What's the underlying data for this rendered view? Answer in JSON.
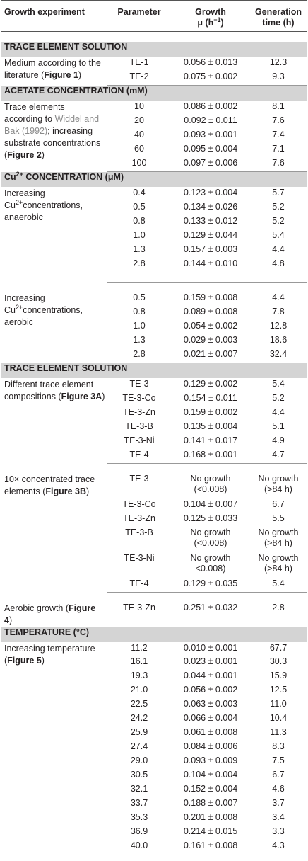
{
  "header": {
    "col1": "Growth experiment",
    "col2": "Parameter",
    "col3_line1": "Growth",
    "col3_line2": "μ (h",
    "col3_sup": "−1",
    "col3_close": ")",
    "col4_line1": "Generation",
    "col4_line2": "time (h)"
  },
  "sections": {
    "s1": "TRACE ELEMENT SOLUTION",
    "s2": "ACETATE CONCENTRATION (mM)",
    "s3_pre": "Cu",
    "s3_sup": "2+",
    "s3_post": " CONCENTRATION (μM)",
    "s4": "TRACE ELEMENT SOLUTION",
    "s5": "TEMPERATURE (°C)"
  },
  "g1": {
    "desc_pre": "Medium according to the literature (",
    "desc_fig": "Figure 1",
    "desc_post": ")",
    "rows": [
      {
        "p": "TE-1",
        "g": "0.056 ± 0.013",
        "t": "12.3"
      },
      {
        "p": "TE-2",
        "g": "0.075 ± 0.002",
        "t": "9.3"
      }
    ]
  },
  "g2": {
    "desc_pre": "Trace elements according to ",
    "desc_ref": "Widdel and Bak (1992)",
    "desc_mid": "; increasing substrate concentrations (",
    "desc_fig": "Figure 2",
    "desc_post": ")",
    "rows": [
      {
        "p": "10",
        "g": "0.086 ± 0.002",
        "t": "8.1"
      },
      {
        "p": "20",
        "g": "0.092 ± 0.011",
        "t": "7.6"
      },
      {
        "p": "40",
        "g": "0.093 ± 0.001",
        "t": "7.4"
      },
      {
        "p": "60",
        "g": "0.095 ± 0.004",
        "t": "7.1"
      },
      {
        "p": "100",
        "g": "0.097 ± 0.006",
        "t": "7.6"
      }
    ]
  },
  "g3": {
    "desc_a": "Increasing",
    "desc_b_pre": "Cu",
    "desc_b_sup": "2+",
    "desc_b_post": "concentrations,",
    "desc_c": "anaerobic",
    "rows": [
      {
        "p": "0.4",
        "g": "0.123 ± 0.004",
        "t": "5.7"
      },
      {
        "p": "0.5",
        "g": "0.134 ± 0.026",
        "t": "5.2"
      },
      {
        "p": "0.8",
        "g": "0.133 ± 0.012",
        "t": "5.2"
      },
      {
        "p": "1.0",
        "g": "0.129 ± 0.044",
        "t": "5.4"
      },
      {
        "p": "1.3",
        "g": "0.157 ± 0.003",
        "t": "4.4"
      },
      {
        "p": "2.8",
        "g": "0.144 ± 0.010",
        "t": "4.8"
      }
    ]
  },
  "g4": {
    "desc_a": "Increasing",
    "desc_b_pre": "Cu",
    "desc_b_sup": "2+",
    "desc_b_post": "concentrations,",
    "desc_c": "aerobic",
    "rows": [
      {
        "p": "0.5",
        "g": "0.159 ± 0.008",
        "t": "4.4"
      },
      {
        "p": "0.8",
        "g": "0.089 ± 0.008",
        "t": "7.8"
      },
      {
        "p": "1.0",
        "g": "0.054 ± 0.002",
        "t": "12.8"
      },
      {
        "p": "1.3",
        "g": "0.029 ± 0.003",
        "t": "18.6"
      },
      {
        "p": "2.8",
        "g": "0.021 ± 0.007",
        "t": "32.4"
      }
    ]
  },
  "g5": {
    "desc_pre": "Different trace element compositions (",
    "desc_fig": "Figure 3A",
    "desc_post": ")",
    "rows": [
      {
        "p": "TE-3",
        "g": "0.129 ± 0.002",
        "t": "5.4"
      },
      {
        "p": "TE-3-Co",
        "g": "0.154 ± 0.011",
        "t": "5.2"
      },
      {
        "p": "TE-3-Zn",
        "g": "0.159 ± 0.002",
        "t": "4.4"
      },
      {
        "p": "TE-3-B",
        "g": "0.135 ± 0.004",
        "t": "5.1"
      },
      {
        "p": "TE-3-Ni",
        "g": "0.141 ± 0.017",
        "t": "4.9"
      },
      {
        "p": "TE-4",
        "g": "0.168 ± 0.001",
        "t": "4.7"
      }
    ]
  },
  "g6": {
    "desc_pre": "10× concentrated trace elements (",
    "desc_fig": "Figure 3B",
    "desc_post": ")",
    "r1": {
      "p": "TE-3",
      "g1": "No growth",
      "g2": "(<0.008)",
      "t1": "No growth",
      "t2": "(>84 h)"
    },
    "r2": {
      "p": "TE-3-Co",
      "g": "0.104 ± 0.007",
      "t": "6.7"
    },
    "r3": {
      "p": "TE-3-Zn",
      "g": "0.125 ± 0.033",
      "t": "5.5"
    },
    "r4": {
      "p": "TE-3-B",
      "g1": "No growth",
      "g2": "(<0.008)",
      "t1": "No growth",
      "t2": "(>84 h)"
    },
    "r5": {
      "p": "TE-3-Ni",
      "g1": "No growth",
      "g2": "<0.008)",
      "t1": "No growth",
      "t2": "(>84 h)"
    },
    "r6": {
      "p": "TE-4",
      "g": "0.129 ± 0.035",
      "t": "5.4"
    }
  },
  "g7": {
    "desc_pre": "Aerobic growth (",
    "desc_fig": "Figure 4",
    "desc_post": ")",
    "rows": [
      {
        "p": "TE-3-Zn",
        "g": "0.251 ± 0.032",
        "t": "2.8"
      }
    ]
  },
  "g8": {
    "desc_pre": "Increasing temperature (",
    "desc_fig": "Figure 5",
    "desc_post": ")",
    "rows": [
      {
        "p": "11.2",
        "g": "0.010 ± 0.001",
        "t": "67.7"
      },
      {
        "p": "16.1",
        "g": "0.023 ± 0.001",
        "t": "30.3"
      },
      {
        "p": "19.3",
        "g": "0.044 ± 0.001",
        "t": "15.9"
      },
      {
        "p": "21.0",
        "g": "0.056 ± 0.002",
        "t": "12.5"
      },
      {
        "p": "22.5",
        "g": "0.063 ± 0.003",
        "t": "11.0"
      },
      {
        "p": "24.2",
        "g": "0.066 ± 0.004",
        "t": "10.4"
      },
      {
        "p": "25.9",
        "g": "0.061 ± 0.008",
        "t": "11.3"
      },
      {
        "p": "27.4",
        "g": "0.084 ± 0.006",
        "t": "8.3"
      },
      {
        "p": "29.0",
        "g": "0.093 ± 0.009",
        "t": "7.5"
      },
      {
        "p": "30.5",
        "g": "0.104 ± 0.004",
        "t": "6.7"
      },
      {
        "p": "32.1",
        "g": "0.152 ± 0.004",
        "t": "4.6"
      },
      {
        "p": "33.7",
        "g": "0.188 ± 0.007",
        "t": "3.7"
      },
      {
        "p": "35.3",
        "g": "0.201 ± 0.008",
        "t": "3.4"
      },
      {
        "p": "36.9",
        "g": "0.214 ± 0.015",
        "t": "3.3"
      },
      {
        "p": "40.0",
        "g": "0.161 ± 0.008",
        "t": "4.3"
      }
    ]
  }
}
